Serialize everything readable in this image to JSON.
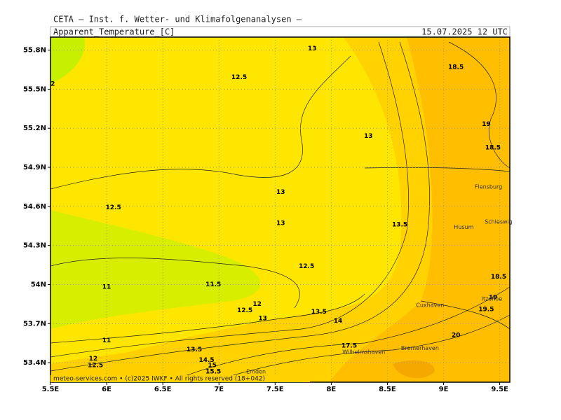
{
  "chart_data": {
    "type": "contour",
    "title": "CETA — Inst. f. Wetter- und Klimafolgenanalysen —",
    "subtitle": "Apparent_Temperature_[C]",
    "date": "15.07.2025 12 UTC",
    "footer": "meteo-services.com • (c)2025 IWKF • All rights reserved (18+042)",
    "xlim": [
      5.5,
      9.59
    ],
    "ylim": [
      53.25,
      55.9
    ],
    "grid": true,
    "xticks": [
      {
        "value": 5.5,
        "label": "5.5E"
      },
      {
        "value": 6,
        "label": "6E"
      },
      {
        "value": 6.5,
        "label": "6.5E"
      },
      {
        "value": 7,
        "label": "7E"
      },
      {
        "value": 7.5,
        "label": "7.5E"
      },
      {
        "value": 8,
        "label": "8E"
      },
      {
        "value": 8.5,
        "label": "8.5E"
      },
      {
        "value": 9,
        "label": "9E"
      },
      {
        "value": 9.5,
        "label": "9.5E"
      }
    ],
    "yticks": [
      {
        "value": 53.4,
        "label": "53.4N"
      },
      {
        "value": 53.7,
        "label": "53.7N"
      },
      {
        "value": 54,
        "label": "54N"
      },
      {
        "value": 54.3,
        "label": "54.3N"
      },
      {
        "value": 54.6,
        "label": "54.6N"
      },
      {
        "value": 54.9,
        "label": "54.9N"
      },
      {
        "value": 55.2,
        "label": "55.2N"
      },
      {
        "value": 55.5,
        "label": "55.5N"
      },
      {
        "value": 55.8,
        "label": "55.8N"
      }
    ],
    "labels": [
      {
        "text": "13",
        "lon": 7.83,
        "lat": 55.81
      },
      {
        "text": "12.5",
        "lon": 7.18,
        "lat": 55.59
      },
      {
        "text": "18.5",
        "lon": 9.11,
        "lat": 55.67
      },
      {
        "text": "2",
        "lon": 5.52,
        "lat": 55.54
      },
      {
        "text": "13",
        "lon": 8.33,
        "lat": 55.14
      },
      {
        "text": "19",
        "lon": 9.38,
        "lat": 55.23
      },
      {
        "text": "18.5",
        "lon": 9.44,
        "lat": 55.05
      },
      {
        "text": "13",
        "lon": 7.55,
        "lat": 54.71
      },
      {
        "text": "12.5",
        "lon": 6.06,
        "lat": 54.59
      },
      {
        "text": "13",
        "lon": 7.55,
        "lat": 54.47
      },
      {
        "text": "13.5",
        "lon": 8.61,
        "lat": 54.46
      },
      {
        "text": "12.5",
        "lon": 7.78,
        "lat": 54.14
      },
      {
        "text": "18.5",
        "lon": 9.49,
        "lat": 54.06
      },
      {
        "text": "11",
        "lon": 6.0,
        "lat": 53.98
      },
      {
        "text": "11.5",
        "lon": 6.95,
        "lat": 54.0
      },
      {
        "text": "19",
        "lon": 9.44,
        "lat": 53.9
      },
      {
        "text": "19.5",
        "lon": 9.38,
        "lat": 53.81
      },
      {
        "text": "12",
        "lon": 7.34,
        "lat": 53.85
      },
      {
        "text": "12.5",
        "lon": 7.23,
        "lat": 53.8
      },
      {
        "text": "13",
        "lon": 7.39,
        "lat": 53.74
      },
      {
        "text": "13.5",
        "lon": 7.89,
        "lat": 53.79
      },
      {
        "text": "20",
        "lon": 9.11,
        "lat": 53.61
      },
      {
        "text": "11",
        "lon": 6.0,
        "lat": 53.57
      },
      {
        "text": "12",
        "lon": 5.88,
        "lat": 53.43
      },
      {
        "text": "12.5",
        "lon": 5.9,
        "lat": 53.38
      },
      {
        "text": "13.5",
        "lon": 6.78,
        "lat": 53.5
      },
      {
        "text": "14.5",
        "lon": 6.89,
        "lat": 53.42
      },
      {
        "text": "15",
        "lon": 6.94,
        "lat": 53.38
      },
      {
        "text": "15.5",
        "lon": 6.95,
        "lat": 53.33
      },
      {
        "text": "14",
        "lon": 8.06,
        "lat": 53.72
      },
      {
        "text": "17.5",
        "lon": 8.16,
        "lat": 53.53
      }
    ],
    "cities": [
      {
        "text": "Flensburg",
        "lon": 9.4,
        "lat": 54.75
      },
      {
        "text": "Schleswig",
        "lon": 9.49,
        "lat": 54.48
      },
      {
        "text": "Husum",
        "lon": 9.18,
        "lat": 54.44
      },
      {
        "text": "Cuxhaven",
        "lon": 8.88,
        "lat": 53.84
      },
      {
        "text": "Itzehoe",
        "lon": 9.43,
        "lat": 53.89
      },
      {
        "text": "Bremerhaven",
        "lon": 8.79,
        "lat": 53.51
      },
      {
        "text": "Emden",
        "lon": 7.33,
        "lat": 53.33
      },
      {
        "text": "Wilhelmshaven",
        "lon": 8.29,
        "lat": 53.48
      }
    ]
  }
}
